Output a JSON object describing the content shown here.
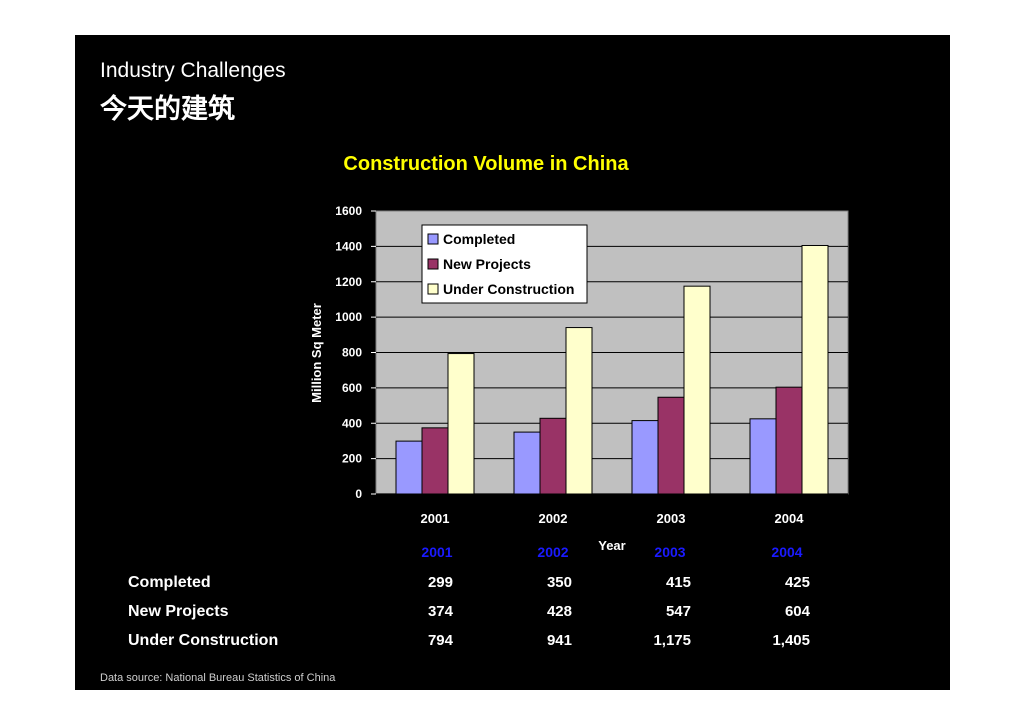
{
  "slide": {
    "title_en": "Industry Challenges",
    "title_cn": "今天的建筑",
    "source": "Data source: National Bureau Statistics of China"
  },
  "colors": {
    "completed": "#9999ff",
    "new": "#993366",
    "under": "#ffffcc",
    "plot_bg": "#c0c0c0",
    "title": "#ffff00",
    "year_head": "#1a1aff"
  },
  "chart_data": {
    "type": "bar",
    "title": "Construction Volume in China",
    "xlabel": "Year",
    "ylabel": "Million Sq Meter",
    "ylim": [
      0,
      1600
    ],
    "yticks": [
      0,
      200,
      400,
      600,
      800,
      1000,
      1200,
      1400,
      1600
    ],
    "categories": [
      "2001",
      "2002",
      "2003",
      "2004"
    ],
    "series": [
      {
        "name": "Completed",
        "values": [
          299,
          350,
          415,
          425
        ]
      },
      {
        "name": "New Projects",
        "values": [
          374,
          428,
          547,
          604
        ]
      },
      {
        "name": "Under Construction",
        "values": [
          794,
          941,
          1175,
          1405
        ]
      }
    ],
    "legend": "top-left inside plot"
  },
  "table": {
    "years": [
      "2001",
      "2002",
      "2003",
      "2004"
    ],
    "rows": [
      {
        "label": "Completed",
        "values": [
          "299",
          "350",
          "415",
          "425"
        ]
      },
      {
        "label": "New Projects",
        "values": [
          "374",
          "428",
          "547",
          "604"
        ]
      },
      {
        "label": "Under Construction",
        "values": [
          "794",
          "941",
          "1,175",
          "1,405"
        ]
      }
    ]
  }
}
